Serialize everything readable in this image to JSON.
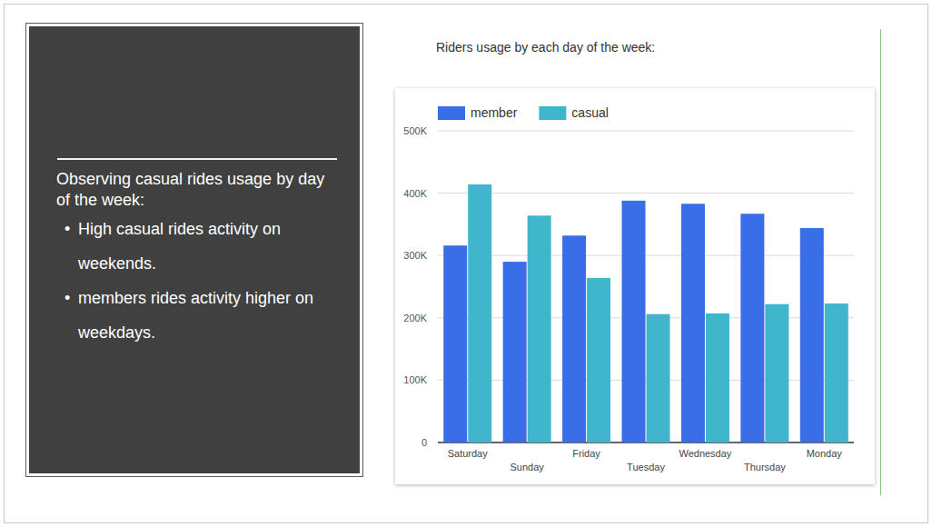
{
  "slide": {
    "heading": "Observing casual rides usage by day of the week:",
    "bullets": [
      "High casual rides activity on weekends.",
      "members rides activity higher on weekdays."
    ]
  },
  "chart_data": {
    "type": "bar",
    "title": "Riders usage by each day of the week:",
    "categories": [
      "Saturday",
      "Sunday",
      "Friday",
      "Tuesday",
      "Wednesday",
      "Thursday",
      "Monday"
    ],
    "series": [
      {
        "name": "member",
        "color": "#3a6ee8",
        "values": [
          316000,
          290000,
          332000,
          388000,
          383000,
          367000,
          344000
        ]
      },
      {
        "name": "casual",
        "color": "#3fb6cc",
        "values": [
          414000,
          364000,
          264000,
          206000,
          207000,
          222000,
          223000
        ]
      }
    ],
    "ylim": [
      0,
      500000
    ],
    "yticks": [
      0,
      {
        "value": 100000,
        "label": "100K"
      },
      {
        "value": 200000,
        "label": "200K"
      },
      {
        "value": 300000,
        "label": "300K"
      },
      {
        "value": 400000,
        "label": "400K"
      },
      {
        "value": 500000,
        "label": "500K"
      }
    ],
    "grid": true,
    "legend": "top"
  }
}
